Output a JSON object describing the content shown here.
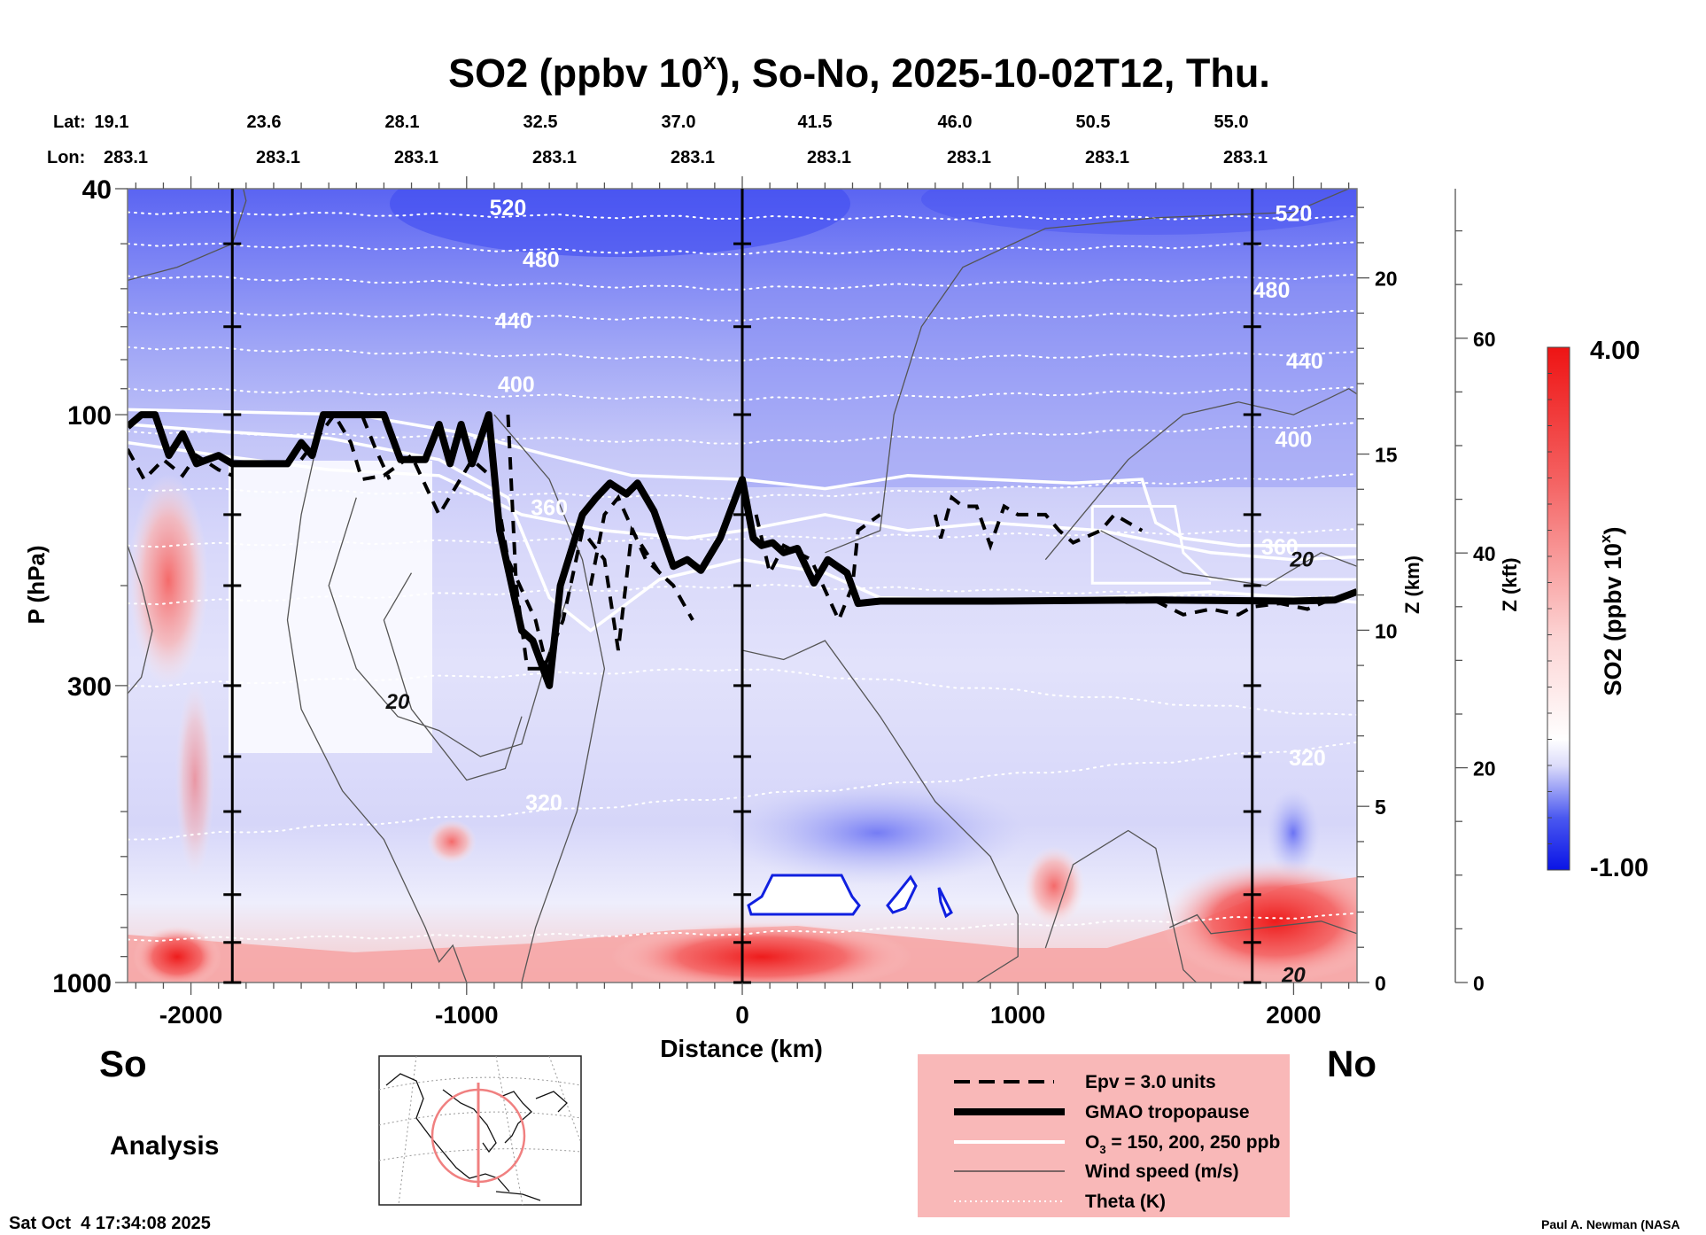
{
  "chart_data": {
    "type": "heatmap",
    "title": "SO2 (ppbv 10",
    "title_superscript": "x",
    "title_suffix": "), So-No, 2025-10-02T12, Thu.",
    "xlabel": "Distance (km)",
    "ylabel": "P (hPa)",
    "y2label": "Z (km)",
    "y3label": "Z (kft)",
    "xlim": [
      -2230,
      2230
    ],
    "ylim_hPa": [
      1000,
      40
    ],
    "x_ticks": [
      -2000,
      -1000,
      0,
      1000,
      2000
    ],
    "y_ticks_hPa": [
      40,
      100,
      300,
      1000
    ],
    "z_km_ticks": [
      0,
      5,
      10,
      15,
      20
    ],
    "z_kft_ticks": [
      0,
      20,
      40,
      60
    ],
    "lat_label": "Lat:",
    "lon_label": "Lon:",
    "lat_values": [
      "19.1",
      "23.6",
      "28.1",
      "32.5",
      "37.0",
      "41.5",
      "46.0",
      "50.5",
      "55.0"
    ],
    "lon_values": [
      "283.1",
      "283.1",
      "283.1",
      "283.1",
      "283.1",
      "283.1",
      "283.1",
      "283.1",
      "283.1"
    ],
    "marker_lines_km": [
      -1850,
      0,
      1850
    ],
    "left_label": "So",
    "right_label": "No",
    "theta_labels": [
      {
        "value": "520",
        "x_km": -850,
        "p": 43
      },
      {
        "value": "480",
        "x_km": -730,
        "p": 53
      },
      {
        "value": "440",
        "x_km": -830,
        "p": 68
      },
      {
        "value": "400",
        "x_km": -820,
        "p": 88
      },
      {
        "value": "360",
        "x_km": -700,
        "p": 145
      },
      {
        "value": "320",
        "x_km": -720,
        "p": 480
      },
      {
        "value": "520",
        "x_km": 2000,
        "p": 44
      },
      {
        "value": "480",
        "x_km": 1920,
        "p": 60
      },
      {
        "value": "440",
        "x_km": 2040,
        "p": 80
      },
      {
        "value": "400",
        "x_km": 2000,
        "p": 110
      },
      {
        "value": "360",
        "x_km": 1950,
        "p": 170
      },
      {
        "value": "320",
        "x_km": 2050,
        "p": 400
      }
    ],
    "wind_labels": [
      {
        "value": "20",
        "x_km": -1250,
        "p": 320
      },
      {
        "value": "20",
        "x_km": 2030,
        "p": 180
      },
      {
        "value": "20",
        "x_km": 2000,
        "p": 970
      }
    ],
    "tropopause_km_hPa": [
      [
        -2230,
        105
      ],
      [
        -2180,
        100
      ],
      [
        -2130,
        100
      ],
      [
        -2080,
        118
      ],
      [
        -2030,
        108
      ],
      [
        -1980,
        122
      ],
      [
        -1900,
        118
      ],
      [
        -1850,
        122
      ],
      [
        -1650,
        122
      ],
      [
        -1600,
        112
      ],
      [
        -1560,
        118
      ],
      [
        -1520,
        100
      ],
      [
        -1450,
        100
      ],
      [
        -1300,
        100
      ],
      [
        -1240,
        120
      ],
      [
        -1150,
        120
      ],
      [
        -1100,
        104
      ],
      [
        -1060,
        122
      ],
      [
        -1020,
        104
      ],
      [
        -980,
        122
      ],
      [
        -920,
        100
      ],
      [
        -880,
        160
      ],
      [
        -800,
        240
      ],
      [
        -760,
        250
      ],
      [
        -700,
        300
      ],
      [
        -660,
        200
      ],
      [
        -580,
        150
      ],
      [
        -530,
        140
      ],
      [
        -480,
        132
      ],
      [
        -420,
        138
      ],
      [
        -380,
        132
      ],
      [
        -320,
        148
      ],
      [
        -250,
        185
      ],
      [
        -200,
        180
      ],
      [
        -150,
        188
      ],
      [
        -80,
        165
      ],
      [
        0,
        130
      ],
      [
        40,
        165
      ],
      [
        70,
        170
      ],
      [
        110,
        168
      ],
      [
        150,
        175
      ],
      [
        200,
        172
      ],
      [
        260,
        198
      ],
      [
        310,
        180
      ],
      [
        380,
        190
      ],
      [
        420,
        215
      ],
      [
        500,
        213
      ],
      [
        900,
        213
      ],
      [
        1500,
        212
      ],
      [
        2000,
        213
      ],
      [
        2150,
        212
      ],
      [
        2230,
        205
      ]
    ],
    "colorbar": {
      "label": "SO2 (ppbv 10",
      "label_sup": "x",
      "label_end": ")",
      "max_label": "4.00",
      "min_label": "-1.00",
      "range": [
        -1.0,
        4.0
      ],
      "low_color": "#1010e8",
      "mid_color": "#ffffff",
      "high_color": "#ee1c1c"
    },
    "legend": {
      "placement": "bottom-right",
      "background": "#f9b8b8",
      "items": [
        {
          "label": "Epv = 3.0 units",
          "style": "dashed-thick"
        },
        {
          "label": "GMAO tropopause",
          "style": "solid-thick"
        },
        {
          "label": "O3 = 150, 200, 250 ppb",
          "style": "solid-white"
        },
        {
          "label": "Wind speed (m/s)",
          "style": "solid-thin"
        },
        {
          "label": "Theta (K)",
          "style": "dotted-white"
        }
      ]
    }
  },
  "footer": {
    "analysis_label": "Analysis",
    "timestamp": "Sat Oct  4 17:34:08 2025",
    "credit": "Paul A. Newman (NASA"
  },
  "inset_map": {
    "name": "North America cross-section locator"
  }
}
